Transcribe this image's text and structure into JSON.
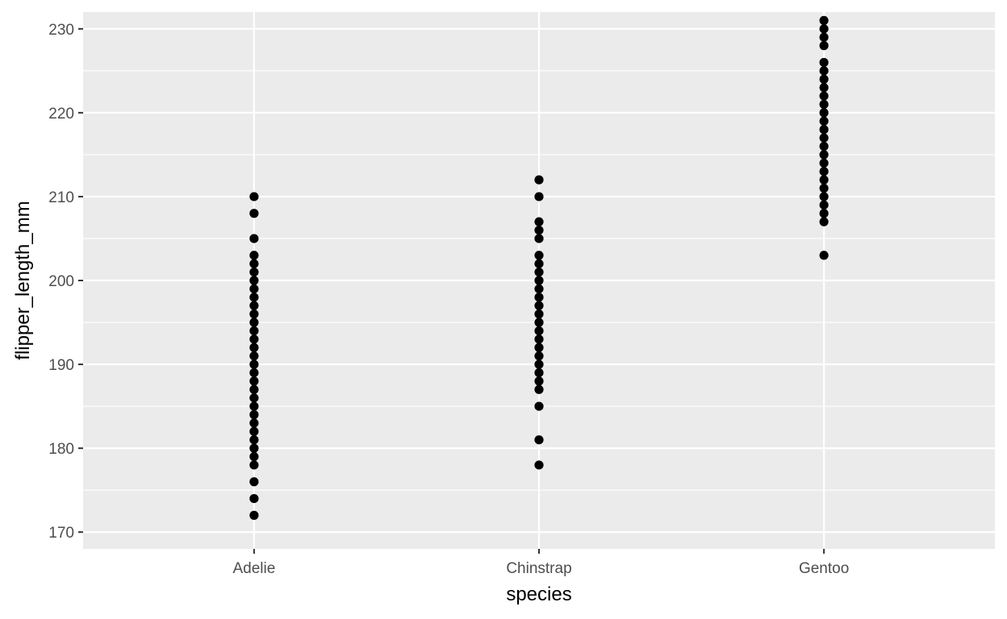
{
  "chart_data": {
    "type": "scatter",
    "title": "",
    "xlabel": "species",
    "ylabel": "flipper_length_mm",
    "categories": [
      "Adelie",
      "Chinstrap",
      "Gentoo"
    ],
    "ylim": [
      168,
      232
    ],
    "y_ticks": [
      170,
      180,
      190,
      200,
      210,
      220,
      230
    ],
    "y_tick_labels": [
      "170",
      "180",
      "190",
      "200",
      "210",
      "220",
      "230"
    ],
    "grid": true,
    "legend": "none",
    "colors": {
      "panel": "#ebebeb",
      "grid": "#ffffff",
      "point": "#000000"
    },
    "series": [
      {
        "category": "Adelie",
        "values": [
          172,
          174,
          176,
          178,
          179,
          180,
          181,
          182,
          183,
          184,
          185,
          186,
          187,
          188,
          189,
          190,
          191,
          192,
          193,
          194,
          195,
          196,
          197,
          198,
          199,
          200,
          201,
          202,
          203,
          205,
          208,
          210
        ]
      },
      {
        "category": "Chinstrap",
        "values": [
          178,
          181,
          185,
          187,
          188,
          189,
          190,
          191,
          192,
          193,
          194,
          195,
          196,
          197,
          198,
          199,
          200,
          201,
          202,
          203,
          205,
          206,
          207,
          210,
          212
        ]
      },
      {
        "category": "Gentoo",
        "values": [
          203,
          207,
          208,
          209,
          210,
          211,
          212,
          213,
          214,
          215,
          216,
          217,
          218,
          219,
          220,
          221,
          222,
          223,
          224,
          225,
          226,
          228,
          229,
          230,
          231
        ]
      }
    ]
  }
}
